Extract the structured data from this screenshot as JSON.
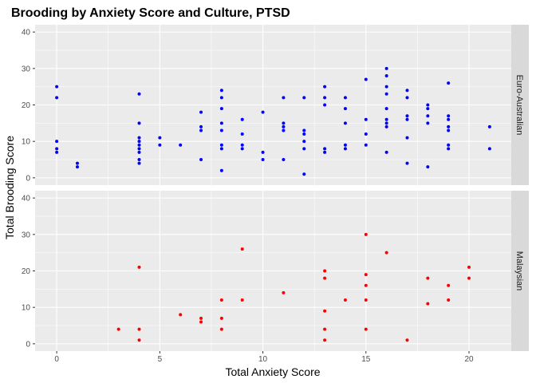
{
  "chart_data": {
    "type": "scatter",
    "title": "Brooding by Anxiety Score and Culture, PTSD",
    "xlabel": "Total Anxiety Score",
    "ylabel": "Total Brooding Score",
    "xlim": [
      -1.05,
      22.05
    ],
    "ylim": [
      -2,
      42
    ],
    "x_ticks": [
      0,
      5,
      10,
      15,
      20
    ],
    "y_ticks": [
      0,
      10,
      20,
      30,
      40
    ],
    "grid": true,
    "legend": "none",
    "facets": [
      {
        "label": "Euro-Australian",
        "color": "#0000ff",
        "points": [
          [
            0,
            25
          ],
          [
            0,
            22
          ],
          [
            0,
            10
          ],
          [
            0,
            8
          ],
          [
            0,
            7
          ],
          [
            1,
            4
          ],
          [
            1,
            3
          ],
          [
            4,
            23
          ],
          [
            4,
            15
          ],
          [
            4,
            11
          ],
          [
            4,
            10
          ],
          [
            4,
            9
          ],
          [
            4,
            8
          ],
          [
            4,
            7
          ],
          [
            4,
            5
          ],
          [
            4,
            4
          ],
          [
            5,
            11
          ],
          [
            5,
            9
          ],
          [
            6,
            9
          ],
          [
            7,
            18
          ],
          [
            7,
            14
          ],
          [
            7,
            13
          ],
          [
            7,
            5
          ],
          [
            8,
            24
          ],
          [
            8,
            22
          ],
          [
            8,
            19
          ],
          [
            8,
            15
          ],
          [
            8,
            13
          ],
          [
            8,
            9
          ],
          [
            8,
            8
          ],
          [
            8,
            2
          ],
          [
            9,
            16
          ],
          [
            9,
            12
          ],
          [
            9,
            9
          ],
          [
            9,
            8
          ],
          [
            10,
            18
          ],
          [
            10,
            7
          ],
          [
            10,
            5
          ],
          [
            11,
            22
          ],
          [
            11,
            15
          ],
          [
            11,
            14
          ],
          [
            11,
            13
          ],
          [
            11,
            5
          ],
          [
            12,
            22
          ],
          [
            12,
            13
          ],
          [
            12,
            12
          ],
          [
            12,
            10
          ],
          [
            12,
            8
          ],
          [
            12,
            1
          ],
          [
            13,
            25
          ],
          [
            13,
            22
          ],
          [
            13,
            20
          ],
          [
            13,
            8
          ],
          [
            13,
            7
          ],
          [
            14,
            22
          ],
          [
            14,
            19
          ],
          [
            14,
            15
          ],
          [
            14,
            9
          ],
          [
            14,
            8
          ],
          [
            15,
            27
          ],
          [
            15,
            16
          ],
          [
            15,
            12
          ],
          [
            15,
            9
          ],
          [
            16,
            30
          ],
          [
            16,
            28
          ],
          [
            16,
            25
          ],
          [
            16,
            23
          ],
          [
            16,
            19
          ],
          [
            16,
            16
          ],
          [
            16,
            15
          ],
          [
            16,
            14
          ],
          [
            16,
            7
          ],
          [
            17,
            24
          ],
          [
            17,
            22
          ],
          [
            17,
            17
          ],
          [
            17,
            16
          ],
          [
            17,
            11
          ],
          [
            17,
            4
          ],
          [
            18,
            20
          ],
          [
            18,
            19
          ],
          [
            18,
            17
          ],
          [
            18,
            15
          ],
          [
            18,
            3
          ],
          [
            19,
            26
          ],
          [
            19,
            17
          ],
          [
            19,
            16
          ],
          [
            19,
            14
          ],
          [
            19,
            13
          ],
          [
            19,
            9
          ],
          [
            19,
            8
          ],
          [
            21,
            14
          ],
          [
            21,
            8
          ]
        ]
      },
      {
        "label": "Malaysian",
        "color": "#ff0000",
        "points": [
          [
            3,
            4
          ],
          [
            4,
            21
          ],
          [
            4,
            4
          ],
          [
            4,
            1
          ],
          [
            6,
            8
          ],
          [
            7,
            7
          ],
          [
            7,
            6
          ],
          [
            8,
            12
          ],
          [
            8,
            7
          ],
          [
            8,
            4
          ],
          [
            9,
            26
          ],
          [
            9,
            12
          ],
          [
            11,
            14
          ],
          [
            13,
            20
          ],
          [
            13,
            18
          ],
          [
            13,
            9
          ],
          [
            13,
            4
          ],
          [
            13,
            1
          ],
          [
            14,
            12
          ],
          [
            15,
            30
          ],
          [
            15,
            19
          ],
          [
            15,
            16
          ],
          [
            15,
            12
          ],
          [
            15,
            4
          ],
          [
            16,
            25
          ],
          [
            17,
            1
          ],
          [
            18,
            18
          ],
          [
            18,
            11
          ],
          [
            19,
            16
          ],
          [
            19,
            12
          ],
          [
            20,
            21
          ],
          [
            20,
            18
          ]
        ]
      }
    ]
  }
}
